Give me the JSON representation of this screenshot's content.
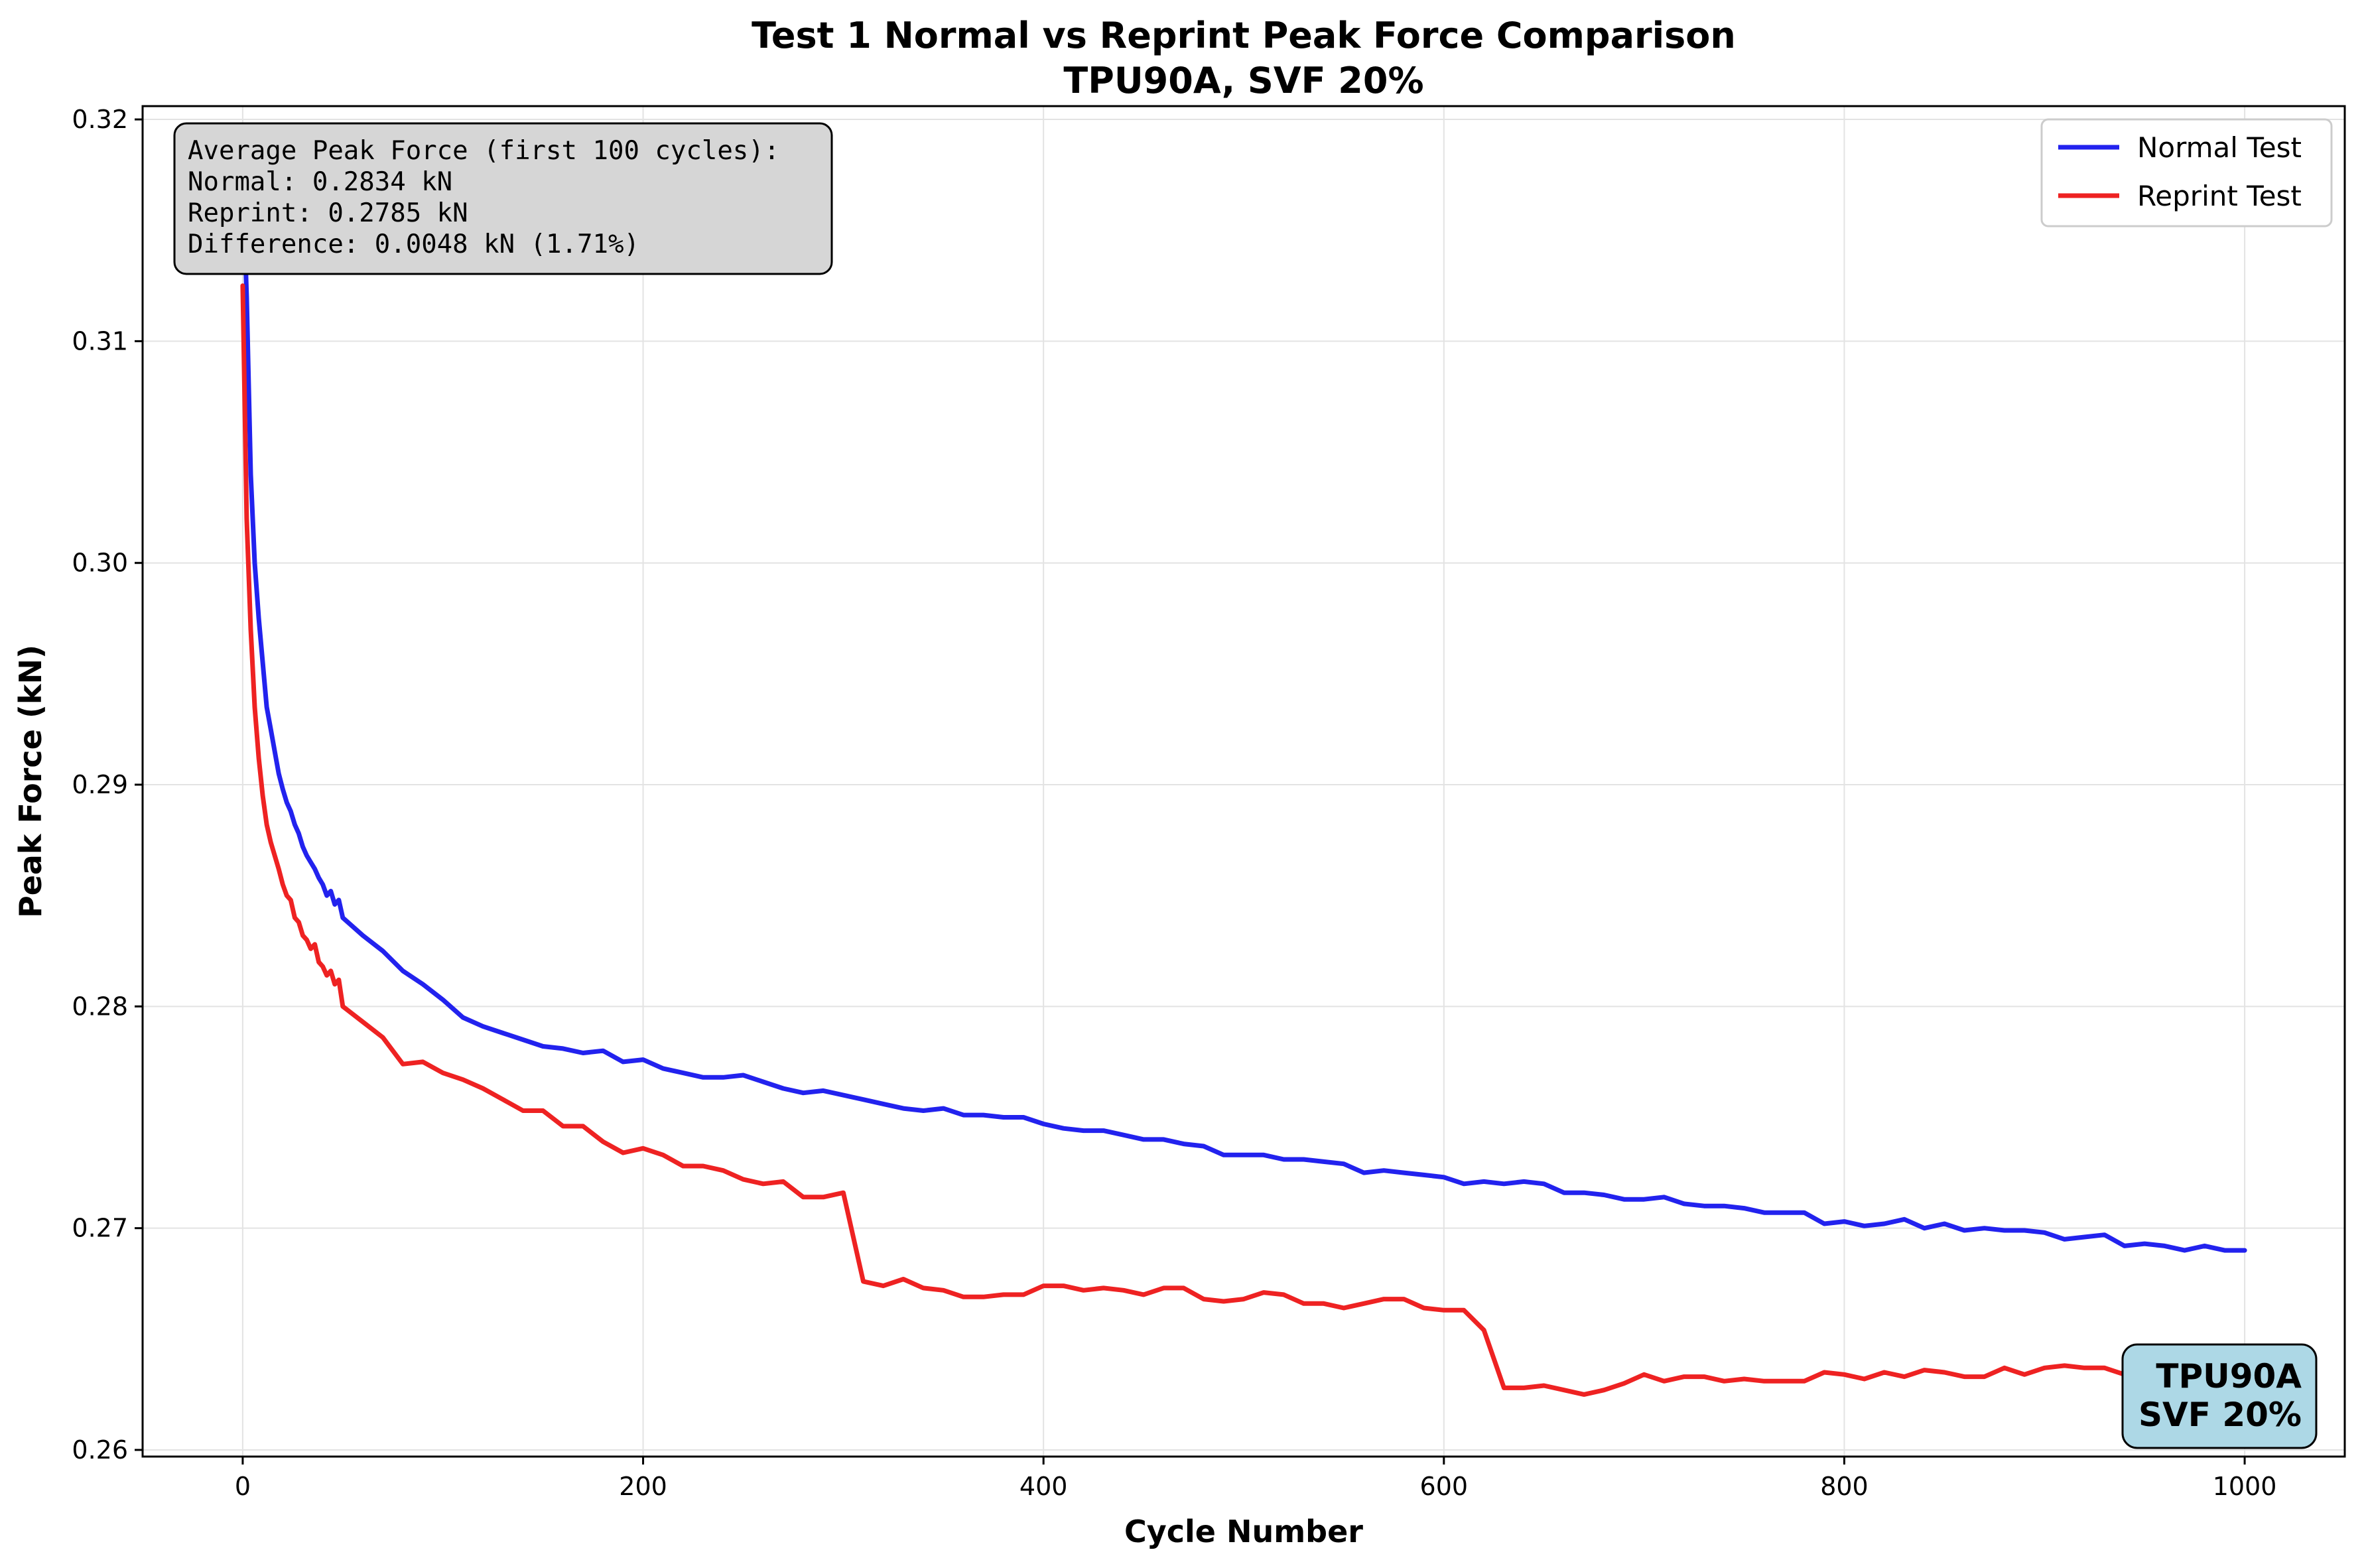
{
  "chart_data": {
    "type": "line",
    "title": "Test 1 Normal vs Reprint Peak Force Comparison",
    "subtitle": "TPU90A, SVF 20%",
    "xlabel": "Cycle Number",
    "ylabel": "Peak Force (kN)",
    "xlim": [
      -50,
      1050
    ],
    "ylim": [
      0.2597,
      0.3206
    ],
    "xticks": [
      0,
      200,
      400,
      600,
      800,
      1000
    ],
    "yticks": [
      0.26,
      0.27,
      0.28,
      0.29,
      0.3,
      0.31,
      0.32
    ],
    "xtick_labels": [
      "0",
      "200",
      "400",
      "600",
      "800",
      "1000"
    ],
    "ytick_labels": [
      "0.26",
      "0.27",
      "0.28",
      "0.29",
      "0.30",
      "0.31",
      "0.32"
    ],
    "grid": true,
    "legend": "top-right",
    "series": [
      {
        "name": "Normal Test",
        "color": "#2222ee",
        "points": [
          [
            0,
            0.3175
          ],
          [
            2,
            0.312
          ],
          [
            4,
            0.304
          ],
          [
            6,
            0.3
          ],
          [
            8,
            0.2975
          ],
          [
            10,
            0.2955
          ],
          [
            12,
            0.2935
          ],
          [
            14,
            0.2925
          ],
          [
            16,
            0.2915
          ],
          [
            18,
            0.2905
          ],
          [
            20,
            0.2898
          ],
          [
            22,
            0.2892
          ],
          [
            24,
            0.2888
          ],
          [
            26,
            0.2882
          ],
          [
            28,
            0.2878
          ],
          [
            30,
            0.2872
          ],
          [
            32,
            0.2868
          ],
          [
            34,
            0.2865
          ],
          [
            36,
            0.2862
          ],
          [
            38,
            0.2858
          ],
          [
            40,
            0.2855
          ],
          [
            42,
            0.285
          ],
          [
            44,
            0.2852
          ],
          [
            46,
            0.2846
          ],
          [
            48,
            0.2848
          ],
          [
            50,
            0.284
          ],
          [
            60,
            0.2832
          ],
          [
            70,
            0.2825
          ],
          [
            80,
            0.2816
          ],
          [
            90,
            0.281
          ],
          [
            100,
            0.2803
          ],
          [
            110,
            0.2795
          ],
          [
            120,
            0.2791
          ],
          [
            130,
            0.2788
          ],
          [
            140,
            0.2785
          ],
          [
            150,
            0.2782
          ],
          [
            160,
            0.2781
          ],
          [
            170,
            0.2779
          ],
          [
            180,
            0.278
          ],
          [
            190,
            0.2775
          ],
          [
            200,
            0.2776
          ],
          [
            210,
            0.2772
          ],
          [
            220,
            0.277
          ],
          [
            230,
            0.2768
          ],
          [
            240,
            0.2768
          ],
          [
            250,
            0.2769
          ],
          [
            260,
            0.2766
          ],
          [
            270,
            0.2763
          ],
          [
            280,
            0.2761
          ],
          [
            290,
            0.2762
          ],
          [
            300,
            0.276
          ],
          [
            310,
            0.2758
          ],
          [
            320,
            0.2756
          ],
          [
            330,
            0.2754
          ],
          [
            340,
            0.2753
          ],
          [
            350,
            0.2754
          ],
          [
            360,
            0.2751
          ],
          [
            370,
            0.2751
          ],
          [
            380,
            0.275
          ],
          [
            390,
            0.275
          ],
          [
            400,
            0.2747
          ],
          [
            410,
            0.2745
          ],
          [
            420,
            0.2744
          ],
          [
            430,
            0.2744
          ],
          [
            440,
            0.2742
          ],
          [
            450,
            0.274
          ],
          [
            460,
            0.274
          ],
          [
            470,
            0.2738
          ],
          [
            480,
            0.2737
          ],
          [
            490,
            0.2733
          ],
          [
            500,
            0.2733
          ],
          [
            510,
            0.2733
          ],
          [
            520,
            0.2731
          ],
          [
            530,
            0.2731
          ],
          [
            540,
            0.273
          ],
          [
            550,
            0.2729
          ],
          [
            560,
            0.2725
          ],
          [
            570,
            0.2726
          ],
          [
            580,
            0.2725
          ],
          [
            590,
            0.2724
          ],
          [
            600,
            0.2723
          ],
          [
            610,
            0.272
          ],
          [
            620,
            0.2721
          ],
          [
            630,
            0.272
          ],
          [
            640,
            0.2721
          ],
          [
            650,
            0.272
          ],
          [
            660,
            0.2716
          ],
          [
            670,
            0.2716
          ],
          [
            680,
            0.2715
          ],
          [
            690,
            0.2713
          ],
          [
            700,
            0.2713
          ],
          [
            710,
            0.2714
          ],
          [
            720,
            0.2711
          ],
          [
            730,
            0.271
          ],
          [
            740,
            0.271
          ],
          [
            750,
            0.2709
          ],
          [
            760,
            0.2707
          ],
          [
            770,
            0.2707
          ],
          [
            780,
            0.2707
          ],
          [
            790,
            0.2702
          ],
          [
            800,
            0.2703
          ],
          [
            810,
            0.2701
          ],
          [
            820,
            0.2702
          ],
          [
            830,
            0.2704
          ],
          [
            840,
            0.27
          ],
          [
            850,
            0.2702
          ],
          [
            860,
            0.2699
          ],
          [
            870,
            0.27
          ],
          [
            880,
            0.2699
          ],
          [
            890,
            0.2699
          ],
          [
            900,
            0.2698
          ],
          [
            910,
            0.2695
          ],
          [
            920,
            0.2696
          ],
          [
            930,
            0.2697
          ],
          [
            940,
            0.2692
          ],
          [
            950,
            0.2693
          ],
          [
            960,
            0.2692
          ],
          [
            970,
            0.269
          ],
          [
            980,
            0.2692
          ],
          [
            990,
            0.269
          ],
          [
            1000,
            0.269
          ]
        ]
      },
      {
        "name": "Reprint Test",
        "color": "#ee2222",
        "points": [
          [
            0,
            0.3125
          ],
          [
            2,
            0.302
          ],
          [
            4,
            0.297
          ],
          [
            6,
            0.2935
          ],
          [
            8,
            0.2912
          ],
          [
            10,
            0.2895
          ],
          [
            12,
            0.2882
          ],
          [
            14,
            0.2874
          ],
          [
            16,
            0.2868
          ],
          [
            18,
            0.2862
          ],
          [
            20,
            0.2855
          ],
          [
            22,
            0.285
          ],
          [
            24,
            0.2848
          ],
          [
            26,
            0.284
          ],
          [
            28,
            0.2838
          ],
          [
            30,
            0.2832
          ],
          [
            32,
            0.283
          ],
          [
            34,
            0.2826
          ],
          [
            36,
            0.2828
          ],
          [
            38,
            0.282
          ],
          [
            40,
            0.2818
          ],
          [
            42,
            0.2814
          ],
          [
            44,
            0.2816
          ],
          [
            46,
            0.281
          ],
          [
            48,
            0.2812
          ],
          [
            50,
            0.28
          ],
          [
            60,
            0.2793
          ],
          [
            70,
            0.2786
          ],
          [
            80,
            0.2774
          ],
          [
            90,
            0.2775
          ],
          [
            100,
            0.277
          ],
          [
            110,
            0.2767
          ],
          [
            120,
            0.2763
          ],
          [
            130,
            0.2758
          ],
          [
            140,
            0.2753
          ],
          [
            150,
            0.2753
          ],
          [
            160,
            0.2746
          ],
          [
            170,
            0.2746
          ],
          [
            180,
            0.2739
          ],
          [
            190,
            0.2734
          ],
          [
            200,
            0.2736
          ],
          [
            210,
            0.2733
          ],
          [
            220,
            0.2728
          ],
          [
            230,
            0.2728
          ],
          [
            240,
            0.2726
          ],
          [
            250,
            0.2722
          ],
          [
            260,
            0.272
          ],
          [
            270,
            0.2721
          ],
          [
            280,
            0.2714
          ],
          [
            290,
            0.2714
          ],
          [
            300,
            0.2716
          ],
          [
            310,
            0.2676
          ],
          [
            320,
            0.2674
          ],
          [
            330,
            0.2677
          ],
          [
            340,
            0.2673
          ],
          [
            350,
            0.2672
          ],
          [
            360,
            0.2669
          ],
          [
            370,
            0.2669
          ],
          [
            380,
            0.267
          ],
          [
            390,
            0.267
          ],
          [
            400,
            0.2674
          ],
          [
            410,
            0.2674
          ],
          [
            420,
            0.2672
          ],
          [
            430,
            0.2673
          ],
          [
            440,
            0.2672
          ],
          [
            450,
            0.267
          ],
          [
            460,
            0.2673
          ],
          [
            470,
            0.2673
          ],
          [
            480,
            0.2668
          ],
          [
            490,
            0.2667
          ],
          [
            500,
            0.2668
          ],
          [
            510,
            0.2671
          ],
          [
            520,
            0.267
          ],
          [
            530,
            0.2666
          ],
          [
            540,
            0.2666
          ],
          [
            550,
            0.2664
          ],
          [
            560,
            0.2666
          ],
          [
            570,
            0.2668
          ],
          [
            580,
            0.2668
          ],
          [
            590,
            0.2664
          ],
          [
            600,
            0.2663
          ],
          [
            610,
            0.2663
          ],
          [
            620,
            0.2654
          ],
          [
            630,
            0.2628
          ],
          [
            640,
            0.2628
          ],
          [
            650,
            0.2629
          ],
          [
            660,
            0.2627
          ],
          [
            670,
            0.2625
          ],
          [
            680,
            0.2627
          ],
          [
            690,
            0.263
          ],
          [
            700,
            0.2634
          ],
          [
            710,
            0.2631
          ],
          [
            720,
            0.2633
          ],
          [
            730,
            0.2633
          ],
          [
            740,
            0.2631
          ],
          [
            750,
            0.2632
          ],
          [
            760,
            0.2631
          ],
          [
            770,
            0.2631
          ],
          [
            780,
            0.2631
          ],
          [
            790,
            0.2635
          ],
          [
            800,
            0.2634
          ],
          [
            810,
            0.2632
          ],
          [
            820,
            0.2635
          ],
          [
            830,
            0.2633
          ],
          [
            840,
            0.2636
          ],
          [
            850,
            0.2635
          ],
          [
            860,
            0.2633
          ],
          [
            870,
            0.2633
          ],
          [
            880,
            0.2637
          ],
          [
            890,
            0.2634
          ],
          [
            900,
            0.2637
          ],
          [
            910,
            0.2638
          ],
          [
            920,
            0.2637
          ],
          [
            930,
            0.2637
          ],
          [
            940,
            0.2634
          ],
          [
            950,
            0.2636
          ],
          [
            960,
            0.2638
          ],
          [
            970,
            0.2639
          ],
          [
            980,
            0.2641
          ],
          [
            990,
            0.2641
          ],
          [
            1000,
            0.2641
          ]
        ]
      }
    ],
    "annotations": {
      "stats_box": [
        "Average Peak Force (first 100 cycles):",
        "Normal: 0.2834 kN",
        "Reprint: 0.2785 kN",
        "Difference: 0.0048 kN (1.71%)"
      ],
      "badge": [
        "TPU90A",
        "SVF 20%"
      ],
      "stats_box_color": "#d6d6d6",
      "badge_color": "#add8e6"
    }
  }
}
